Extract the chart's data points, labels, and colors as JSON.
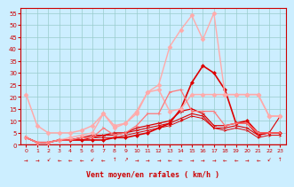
{
  "xlabel": "Vent moyen/en rafales ( km/h )",
  "xlim": [
    -0.5,
    23.5
  ],
  "ylim": [
    0,
    57
  ],
  "yticks": [
    0,
    5,
    10,
    15,
    20,
    25,
    30,
    35,
    40,
    45,
    50,
    55
  ],
  "xticks": [
    0,
    1,
    2,
    3,
    4,
    5,
    6,
    7,
    8,
    9,
    10,
    11,
    12,
    13,
    14,
    15,
    16,
    17,
    18,
    19,
    20,
    21,
    22,
    23
  ],
  "bg_color": "#cceeff",
  "grid_color": "#99cccc",
  "series": [
    {
      "comment": "dark red main - diamond markers - rises to peak ~33 at x=16",
      "x": [
        0,
        1,
        2,
        3,
        4,
        5,
        6,
        7,
        8,
        9,
        10,
        11,
        12,
        13,
        14,
        15,
        16,
        17,
        18,
        19,
        20,
        21,
        22,
        23
      ],
      "y": [
        3,
        1,
        1,
        2,
        2,
        2,
        2,
        2,
        3,
        3,
        4,
        5,
        7,
        9,
        15,
        26,
        33,
        30,
        23,
        9,
        10,
        5,
        5,
        5
      ],
      "color": "#dd0000",
      "lw": 1.2,
      "marker": "D",
      "ms": 2.0
    },
    {
      "comment": "dark red - arrow markers - moderate rise",
      "x": [
        0,
        1,
        2,
        3,
        4,
        5,
        6,
        7,
        8,
        9,
        10,
        11,
        12,
        13,
        14,
        15,
        16,
        17,
        18,
        19,
        20,
        21,
        22,
        23
      ],
      "y": [
        3,
        1,
        1,
        2,
        2,
        3,
        4,
        4,
        5,
        5,
        7,
        8,
        9,
        10,
        14,
        15,
        13,
        8,
        8,
        9,
        9,
        4,
        5,
        5
      ],
      "color": "#dd0000",
      "lw": 0.9,
      "marker": "4",
      "ms": 3.5
    },
    {
      "comment": "dark red - arrow markers - lower",
      "x": [
        0,
        1,
        2,
        3,
        4,
        5,
        6,
        7,
        8,
        9,
        10,
        11,
        12,
        13,
        14,
        15,
        16,
        17,
        18,
        19,
        20,
        21,
        22,
        23
      ],
      "y": [
        3,
        1,
        1,
        2,
        2,
        3,
        3,
        4,
        4,
        5,
        6,
        7,
        8,
        9,
        11,
        13,
        12,
        7,
        7,
        8,
        7,
        4,
        5,
        12
      ],
      "color": "#dd0000",
      "lw": 0.8,
      "marker": "4",
      "ms": 3.0
    },
    {
      "comment": "dark red nearly flat with slight slope",
      "x": [
        0,
        1,
        2,
        3,
        4,
        5,
        6,
        7,
        8,
        9,
        10,
        11,
        12,
        13,
        14,
        15,
        16,
        17,
        18,
        19,
        20,
        21,
        22,
        23
      ],
      "y": [
        3,
        1,
        1,
        2,
        2,
        2,
        3,
        3,
        3,
        4,
        5,
        6,
        7,
        8,
        10,
        12,
        11,
        7,
        6,
        7,
        6,
        3,
        4,
        4
      ],
      "color": "#dd0000",
      "lw": 0.7,
      "marker": "4",
      "ms": 2.5
    },
    {
      "comment": "light pink - starts high at 21, drops then rises - diamond",
      "x": [
        0,
        1,
        2,
        3,
        4,
        5,
        6,
        7,
        8,
        9,
        10,
        11,
        12,
        13,
        14,
        15,
        16,
        17,
        18,
        19,
        20,
        21,
        22,
        23
      ],
      "y": [
        21,
        8,
        5,
        5,
        5,
        6,
        8,
        13,
        8,
        9,
        13,
        22,
        23,
        14,
        15,
        21,
        21,
        21,
        21,
        21,
        21,
        21,
        12,
        12
      ],
      "color": "#ffaaaa",
      "lw": 1.1,
      "marker": "D",
      "ms": 2.5
    },
    {
      "comment": "light pink - big peak at 54-55 around x=15-17",
      "x": [
        0,
        1,
        2,
        3,
        4,
        5,
        6,
        7,
        8,
        9,
        10,
        11,
        12,
        13,
        14,
        15,
        16,
        17,
        18,
        19,
        20,
        21,
        22,
        23
      ],
      "y": [
        3,
        1,
        1,
        2,
        3,
        4,
        5,
        13,
        7,
        9,
        14,
        22,
        25,
        41,
        48,
        54,
        44,
        55,
        21,
        21,
        21,
        21,
        12,
        12
      ],
      "color": "#ffaaaa",
      "lw": 1.0,
      "marker": "D",
      "ms": 2.5
    },
    {
      "comment": "medium pink/salmon - moderate peak",
      "x": [
        0,
        1,
        2,
        3,
        4,
        5,
        6,
        7,
        8,
        9,
        10,
        11,
        12,
        13,
        14,
        15,
        16,
        17,
        18,
        19,
        20,
        21,
        22,
        23
      ],
      "y": [
        3,
        1,
        1,
        2,
        2,
        3,
        3,
        7,
        4,
        5,
        8,
        13,
        13,
        22,
        23,
        14,
        14,
        14,
        8,
        9,
        9,
        5,
        5,
        5
      ],
      "color": "#ff7777",
      "lw": 0.9,
      "marker": "4",
      "ms": 3.0
    }
  ],
  "arrows": [
    "→",
    "→",
    "↙",
    "←",
    "←",
    "←",
    "↙",
    "←",
    "↑",
    "↗",
    "→",
    "→",
    "→",
    "←",
    "←",
    "→",
    "→",
    "→",
    "←",
    "←",
    "→",
    "←",
    "↙",
    "↑"
  ],
  "arrow_color": "#cc0000",
  "tick_color": "#cc0000",
  "spine_color": "#cc0000",
  "label_color": "#cc0000"
}
